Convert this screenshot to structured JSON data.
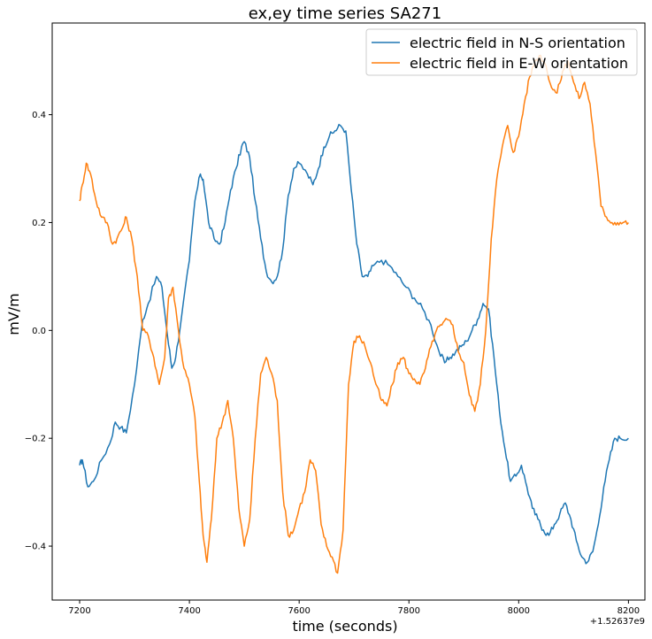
{
  "chart_data": {
    "type": "line",
    "title": "ex,ey time series SA271",
    "xlabel": "time (seconds)",
    "ylabel": "mV/m",
    "x_offset_label": "+1.52637e9",
    "xlim": [
      7150,
      8230
    ],
    "ylim": [
      -0.5,
      0.57
    ],
    "x_ticks": [
      7200,
      7400,
      7600,
      7800,
      8000,
      8200
    ],
    "y_ticks": [
      -0.4,
      -0.2,
      0.0,
      0.2,
      0.4
    ],
    "x_tick_labels": [
      "7200",
      "7400",
      "7600",
      "7800",
      "8000",
      "8200"
    ],
    "y_tick_labels": [
      "−0.4",
      "−0.2",
      "0.0",
      "0.2",
      "0.4"
    ],
    "grid": false,
    "legend_position": "top-right",
    "series": [
      {
        "name": "electric field in N-S orientation",
        "color": "#1f77b4",
        "x": [
          7200,
          7205,
          7215,
          7225,
          7240,
          7255,
          7265,
          7275,
          7285,
          7300,
          7315,
          7325,
          7340,
          7350,
          7360,
          7368,
          7375,
          7385,
          7400,
          7410,
          7420,
          7425,
          7435,
          7445,
          7455,
          7465,
          7475,
          7485,
          7495,
          7500,
          7510,
          7520,
          7530,
          7540,
          7550,
          7560,
          7570,
          7580,
          7590,
          7600,
          7615,
          7625,
          7635,
          7645,
          7655,
          7665,
          7675,
          7685,
          7695,
          7705,
          7715,
          7725,
          7735,
          7750,
          7765,
          7780,
          7795,
          7810,
          7825,
          7840,
          7855,
          7865,
          7875,
          7885,
          7895,
          7905,
          7915,
          7925,
          7935,
          7945,
          7955,
          7965,
          7975,
          7985,
          7995,
          8005,
          8015,
          8025,
          8035,
          8045,
          8055,
          8065,
          8075,
          8085,
          8095,
          8105,
          8115,
          8125,
          8135,
          8145,
          8155,
          8165,
          8175,
          8185,
          8200
        ],
        "y": [
          -0.25,
          -0.24,
          -0.29,
          -0.28,
          -0.24,
          -0.21,
          -0.17,
          -0.18,
          -0.19,
          -0.1,
          0.02,
          0.05,
          0.1,
          0.08,
          -0.01,
          -0.07,
          -0.05,
          0.02,
          0.13,
          0.24,
          0.29,
          0.28,
          0.2,
          0.17,
          0.16,
          0.2,
          0.26,
          0.3,
          0.34,
          0.35,
          0.32,
          0.24,
          0.17,
          0.11,
          0.09,
          0.1,
          0.15,
          0.25,
          0.3,
          0.31,
          0.29,
          0.27,
          0.3,
          0.34,
          0.36,
          0.37,
          0.38,
          0.37,
          0.26,
          0.16,
          0.1,
          0.1,
          0.12,
          0.13,
          0.12,
          0.1,
          0.08,
          0.06,
          0.04,
          0.01,
          -0.04,
          -0.06,
          -0.05,
          -0.04,
          -0.03,
          -0.02,
          0.0,
          0.02,
          0.05,
          0.04,
          -0.05,
          -0.15,
          -0.22,
          -0.28,
          -0.27,
          -0.25,
          -0.29,
          -0.33,
          -0.35,
          -0.37,
          -0.38,
          -0.36,
          -0.34,
          -0.32,
          -0.35,
          -0.39,
          -0.42,
          -0.43,
          -0.41,
          -0.36,
          -0.29,
          -0.24,
          -0.2,
          -0.2,
          -0.2
        ],
        "y_note": ""
      },
      {
        "name": "electric field in E-W orientation",
        "color": "#ff7f0e",
        "x": [
          7200,
          7205,
          7212,
          7220,
          7230,
          7240,
          7250,
          7260,
          7268,
          7278,
          7285,
          7295,
          7305,
          7315,
          7325,
          7335,
          7345,
          7355,
          7362,
          7370,
          7380,
          7390,
          7400,
          7410,
          7418,
          7425,
          7432,
          7440,
          7450,
          7460,
          7470,
          7480,
          7490,
          7500,
          7510,
          7520,
          7530,
          7540,
          7550,
          7560,
          7570,
          7580,
          7590,
          7600,
          7610,
          7620,
          7630,
          7640,
          7650,
          7660,
          7670,
          7680,
          7690,
          7700,
          7710,
          7720,
          7730,
          7740,
          7750,
          7760,
          7770,
          7780,
          7790,
          7800,
          7810,
          7820,
          7830,
          7840,
          7850,
          7860,
          7870,
          7880,
          7890,
          7900,
          7910,
          7920,
          7930,
          7940,
          7950,
          7960,
          7970,
          7980,
          7990,
          8000,
          8010,
          8020,
          8030,
          8040,
          8050,
          8060,
          8070,
          8080,
          8090,
          8100,
          8110,
          8120,
          8130,
          8140,
          8150,
          8160,
          8170,
          8180,
          8190,
          8200
        ],
        "y": [
          0.24,
          0.27,
          0.31,
          0.29,
          0.24,
          0.21,
          0.2,
          0.16,
          0.17,
          0.19,
          0.21,
          0.17,
          0.1,
          0.0,
          -0.01,
          -0.05,
          -0.1,
          -0.05,
          0.06,
          0.08,
          0.0,
          -0.07,
          -0.1,
          -0.16,
          -0.28,
          -0.38,
          -0.43,
          -0.35,
          -0.2,
          -0.17,
          -0.13,
          -0.2,
          -0.33,
          -0.4,
          -0.35,
          -0.2,
          -0.08,
          -0.05,
          -0.08,
          -0.13,
          -0.3,
          -0.38,
          -0.37,
          -0.33,
          -0.3,
          -0.24,
          -0.26,
          -0.36,
          -0.4,
          -0.42,
          -0.45,
          -0.37,
          -0.1,
          -0.02,
          -0.01,
          -0.03,
          -0.06,
          -0.1,
          -0.13,
          -0.14,
          -0.1,
          -0.06,
          -0.05,
          -0.08,
          -0.09,
          -0.1,
          -0.07,
          -0.03,
          0.0,
          0.01,
          0.02,
          0.01,
          -0.04,
          -0.06,
          -0.12,
          -0.15,
          -0.1,
          0.0,
          0.17,
          0.28,
          0.34,
          0.38,
          0.33,
          0.36,
          0.42,
          0.47,
          0.5,
          0.51,
          0.49,
          0.45,
          0.44,
          0.48,
          0.5,
          0.46,
          0.43,
          0.46,
          0.42,
          0.33,
          0.23,
          0.21,
          0.2,
          0.2,
          0.2,
          0.2
        ],
        "y_note": ""
      }
    ]
  }
}
